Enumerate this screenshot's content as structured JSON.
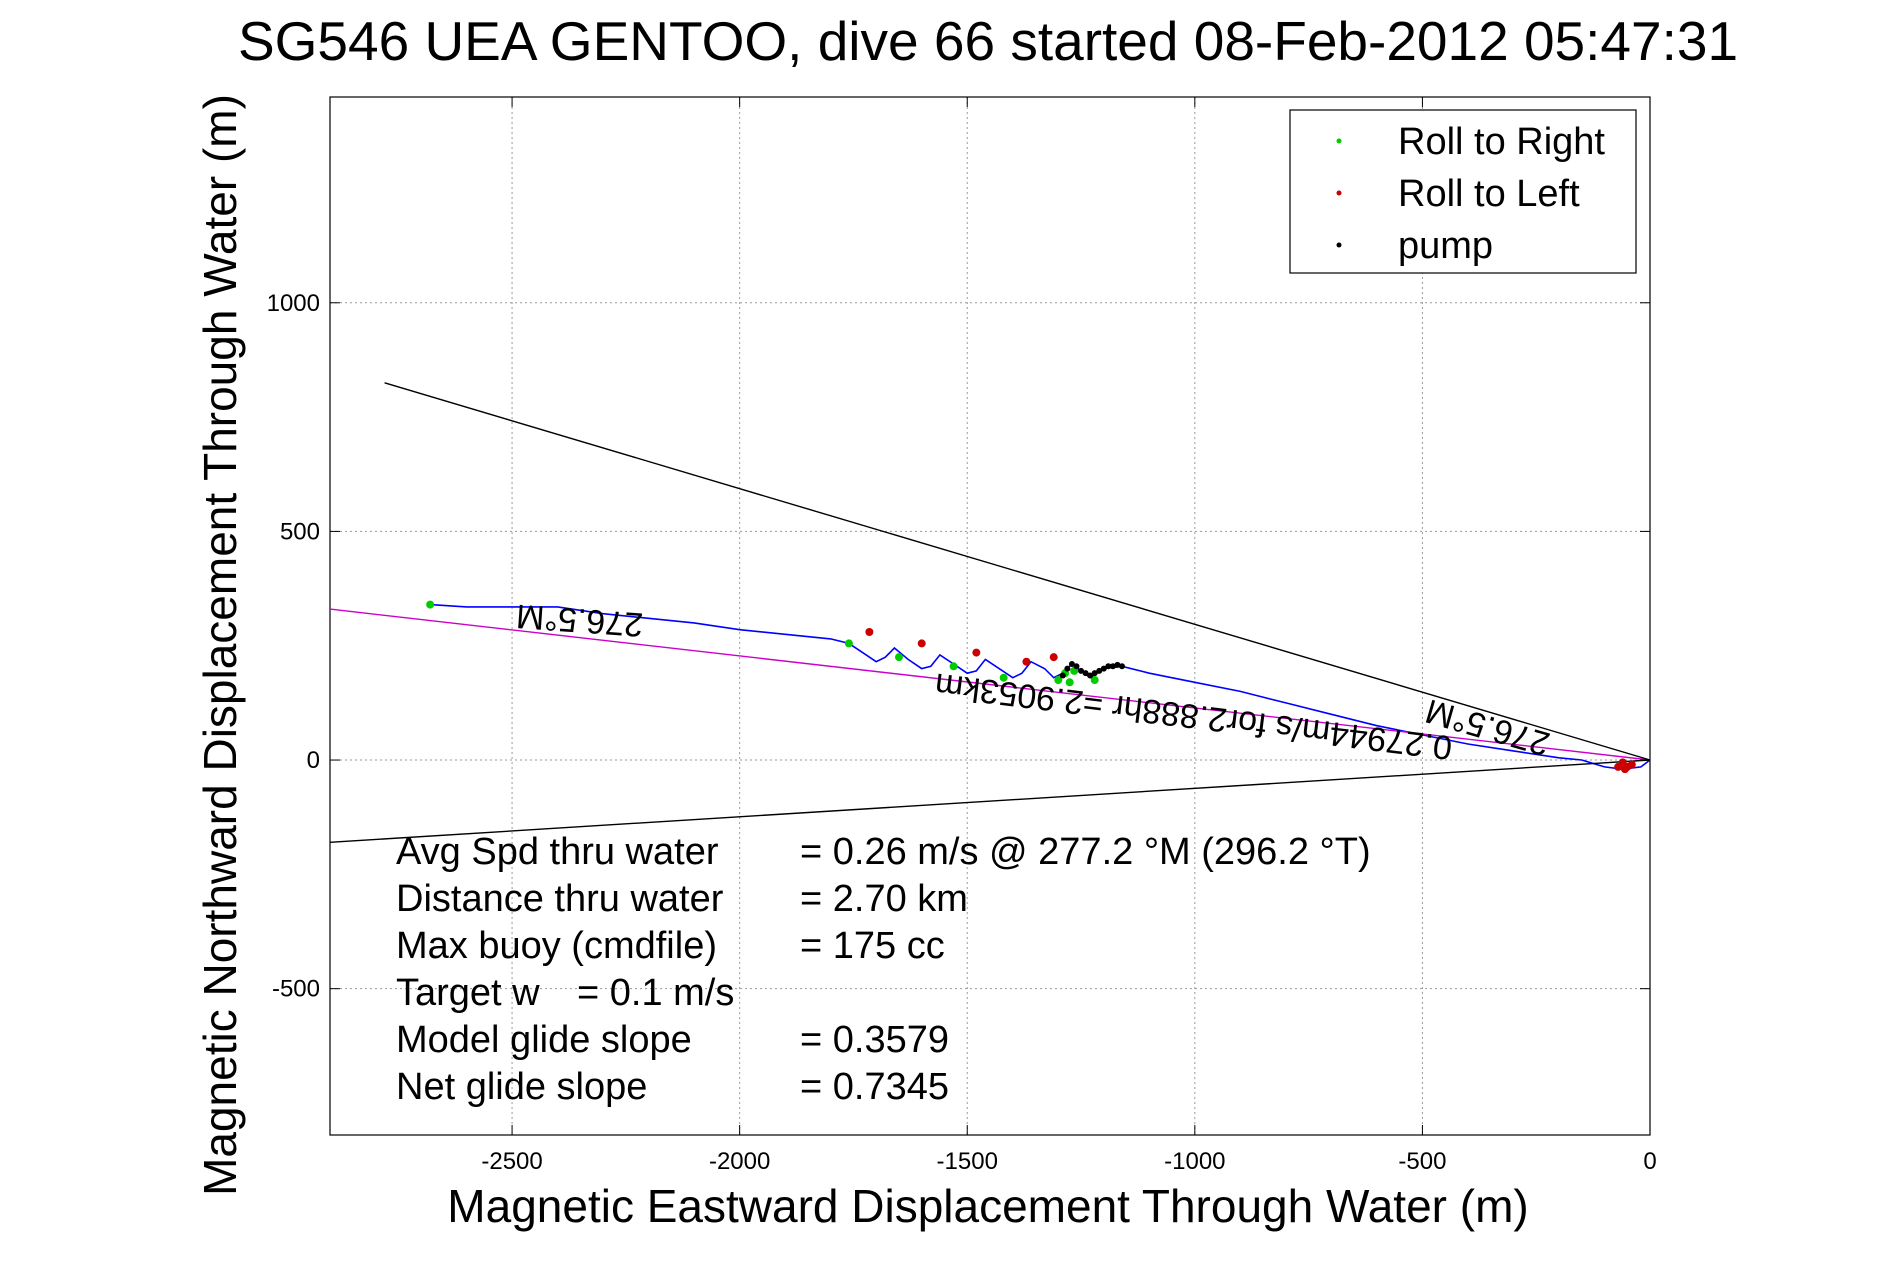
{
  "chart_data": {
    "type": "line",
    "title": "SG546 UEA GENTOO, dive 66 started 08-Feb-2012 05:47:31",
    "xlabel": "Magnetic Eastward Displacement Through Water (m)",
    "ylabel": "Magnetic Northward Displacement Through Water (m)",
    "xlim": [
      -2900,
      0
    ],
    "ylim": [
      -820,
      1450
    ],
    "xticks": [
      -2500,
      -2000,
      -1500,
      -1000,
      -500,
      0
    ],
    "yticks": [
      -500,
      0,
      500,
      1000
    ],
    "grid": true,
    "legend_position": "top-right",
    "legend": [
      {
        "label": "Roll to Right",
        "color": "#00cc00"
      },
      {
        "label": "Roll to Left",
        "color": "#cc0000"
      },
      {
        "label": "pump",
        "color": "#000000"
      }
    ],
    "series": [
      {
        "name": "track",
        "color": "#0000ff",
        "x": [
          0,
          -20,
          -60,
          -100,
          -150,
          -200,
          -300,
          -400,
          -500,
          -600,
          -700,
          -800,
          -900,
          -1000,
          -1100,
          -1160,
          -1200,
          -1230,
          -1250,
          -1270,
          -1290,
          -1310,
          -1330,
          -1360,
          -1380,
          -1400,
          -1430,
          -1460,
          -1480,
          -1500,
          -1530,
          -1560,
          -1580,
          -1600,
          -1630,
          -1660,
          -1680,
          -1700,
          -1730,
          -1760,
          -1800,
          -1900,
          -2000,
          -2100,
          -2200,
          -2300,
          -2400,
          -2500,
          -2550,
          -2600,
          -2680
        ],
        "y": [
          0,
          -15,
          -20,
          -15,
          0,
          5,
          20,
          35,
          55,
          75,
          100,
          125,
          150,
          170,
          190,
          205,
          200,
          180,
          195,
          210,
          190,
          180,
          200,
          215,
          190,
          180,
          200,
          220,
          195,
          190,
          210,
          230,
          205,
          200,
          220,
          245,
          225,
          215,
          235,
          255,
          265,
          275,
          285,
          300,
          310,
          320,
          335,
          335,
          335,
          335,
          340
        ]
      },
      {
        "name": "heading 276.5 °M",
        "color": "#cc00cc",
        "x": [
          0,
          -2900
        ],
        "y": [
          0,
          330
        ]
      },
      {
        "name": "envelope upper",
        "color": "#000000",
        "x": [
          0,
          -2780
        ],
        "y": [
          0,
          825
        ]
      },
      {
        "name": "envelope lower",
        "color": "#000000",
        "x": [
          0,
          -2900
        ],
        "y": [
          0,
          -180
        ]
      }
    ],
    "roll_right_points": {
      "x": [
        -1760,
        -1650,
        -1530,
        -1420,
        -1300,
        -1285,
        -1275,
        -1265,
        -1220,
        -2680
      ],
      "y": [
        255,
        225,
        205,
        180,
        175,
        190,
        170,
        195,
        175,
        340
      ]
    },
    "roll_left_points": {
      "x": [
        -1715,
        -1600,
        -1480,
        -1370,
        -1310,
        -40,
        -50,
        -55,
        -60,
        -70
      ],
      "y": [
        280,
        255,
        235,
        215,
        225,
        -10,
        -15,
        -20,
        -5,
        -15
      ]
    },
    "pump_points": {
      "x": [
        -1290,
        -1280,
        -1270,
        -1260,
        -1250,
        -1240,
        -1230,
        -1220,
        -1210,
        -1200,
        -1190,
        -1180,
        -1170,
        -1160
      ],
      "y": [
        185,
        200,
        210,
        205,
        195,
        190,
        185,
        190,
        195,
        200,
        205,
        205,
        208,
        205
      ]
    },
    "annotations": [
      {
        "text": "276.5°M",
        "x": -2350,
        "y": 330,
        "angle": 184
      },
      {
        "text": "276.5°M",
        "x": -350,
        "y": 95,
        "angle": 196
      },
      {
        "text": "0.27944m/s for2.888hr =2.9053km",
        "x": -1000,
        "y": 120,
        "angle": 187
      }
    ],
    "stats": [
      {
        "label": "Avg Spd thru water",
        "value": "=  0.26 m/s @ 277.2 °M (296.2 °T)"
      },
      {
        "label": "Distance thru water",
        "value": "=  2.70 km"
      },
      {
        "label": "Max buoy (cmdfile)",
        "value": "= 175 cc"
      },
      {
        "label": "Target w",
        "value": "= 0.1 m/s"
      },
      {
        "label": "Model glide slope",
        "value": "= 0.3579"
      },
      {
        "label": "Net glide slope",
        "value": "= 0.7345"
      }
    ]
  }
}
